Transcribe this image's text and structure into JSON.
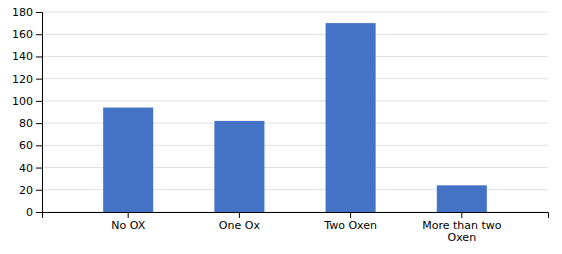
{
  "chart_data": {
    "type": "bar",
    "categories": [
      "No OX",
      "One Ox",
      "Two Oxen",
      "More than two\nOxen"
    ],
    "values": [
      94,
      82,
      170,
      24
    ],
    "color": "#4472C4",
    "ylim": [
      0,
      180
    ],
    "yticks": [
      0,
      20,
      40,
      60,
      80,
      100,
      120,
      140,
      160,
      180
    ],
    "grid": true
  }
}
